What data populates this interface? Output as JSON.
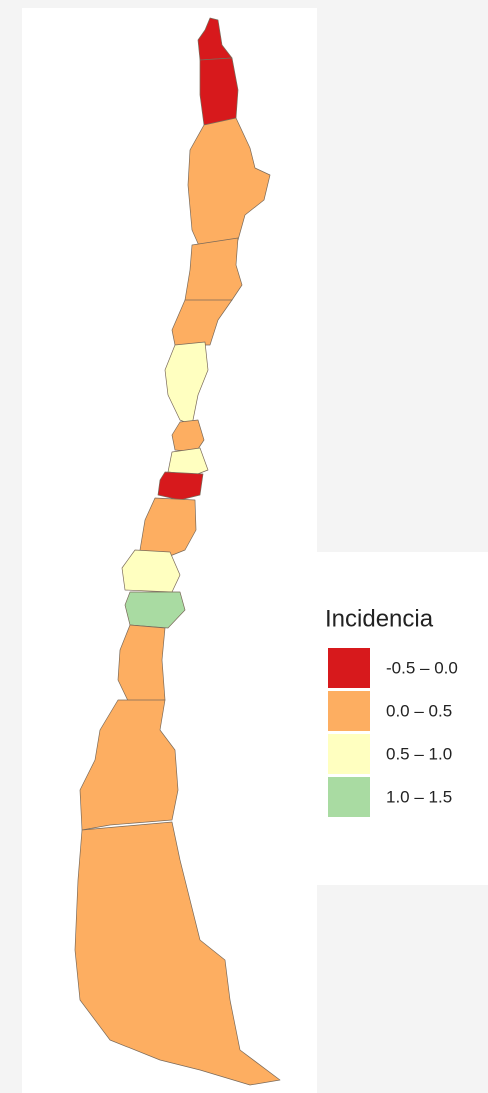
{
  "legend": {
    "title": "Incidencia",
    "items": [
      {
        "label": "-0.5 – 0.0",
        "color": "#d7191c"
      },
      {
        "label": "0.0 – 0.5",
        "color": "#fdae61"
      },
      {
        "label": "0.5 – 1.0",
        "color": "#ffffc0"
      },
      {
        "label": "1.0 – 1.5",
        "color": "#a9dba2"
      }
    ]
  }
}
